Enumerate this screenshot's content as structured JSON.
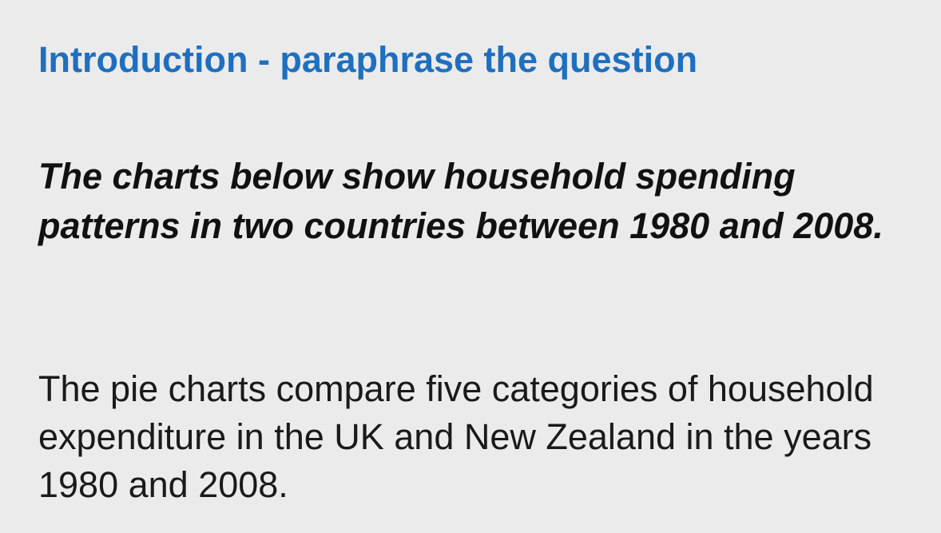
{
  "slide": {
    "heading": "Introduction - paraphrase the question",
    "question": "The charts below show household spending patterns in two countries between 1980 and 2008.",
    "paraphrase": "The pie charts compare five categories of household expenditure in the UK and New Zealand in the years 1980 and 2008."
  },
  "colors": {
    "background": "#ebebeb",
    "heading": "#1f6fbf",
    "text": "#111111"
  }
}
